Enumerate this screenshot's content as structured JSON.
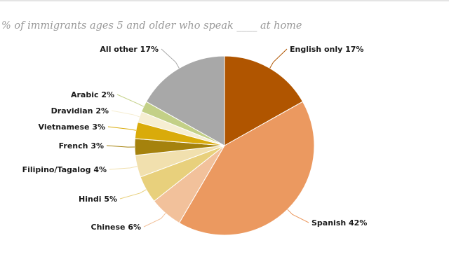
{
  "chart_data": {
    "type": "pie",
    "title": "",
    "subtitle": "% of immigrants ages 5 and older who speak ____ at home",
    "slices": [
      {
        "label": "English only",
        "value": 17,
        "value_label": "17%",
        "color": "#b05500"
      },
      {
        "label": "Spanish",
        "value": 42,
        "value_label": "42%",
        "color": "#eb9960"
      },
      {
        "label": "Chinese",
        "value": 6,
        "value_label": "6%",
        "color": "#f2c19b"
      },
      {
        "label": "Hindi",
        "value": 5,
        "value_label": "5%",
        "color": "#e8d07c"
      },
      {
        "label": "Filipino/Tagalog",
        "value": 4,
        "value_label": "4%",
        "color": "#f1e0ae"
      },
      {
        "label": "French",
        "value": 3,
        "value_label": "3%",
        "color": "#a5820d"
      },
      {
        "label": "Vietnamese",
        "value": 3,
        "value_label": "3%",
        "color": "#d9ab0a"
      },
      {
        "label": "Dravidian",
        "value": 2,
        "value_label": "2%",
        "color": "#f6eed2"
      },
      {
        "label": "Arabic",
        "value": 2,
        "value_label": "2%",
        "color": "#c3d087"
      },
      {
        "label": "All other",
        "value": 17,
        "value_label": "17%",
        "color": "#a8a8a8"
      }
    ]
  }
}
